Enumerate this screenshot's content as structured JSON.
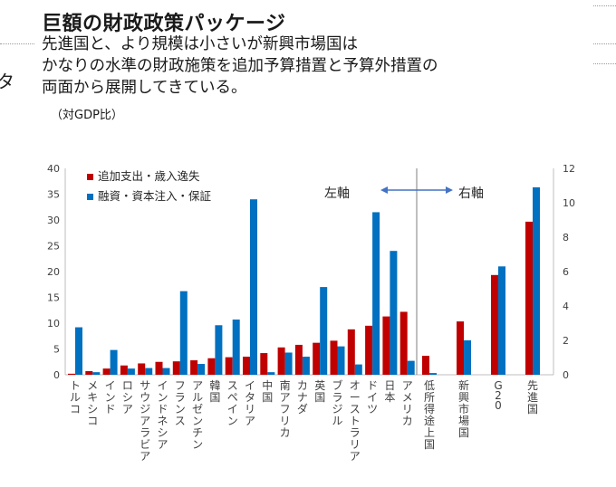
{
  "title": "巨額の財政政策パッケージ",
  "subtitle_lines": [
    "先進国と、より規模は小さいが新興市場国は",
    "かなりの水準の財政施策を追加予算措置と予算外措置の",
    "両面から展開してきている。"
  ],
  "unit_note": "（対GDP比）",
  "edge_fragment": "タ",
  "colors": {
    "series_red": "#c00000",
    "series_blue": "#0070c0",
    "axis": "#bfbfbf",
    "text": "#404040",
    "divider": "#7f7f7f"
  },
  "chart_data": {
    "type": "bar",
    "title": "",
    "axis_labels": {
      "left": "左軸",
      "right": "右軸"
    },
    "left_ylim": [
      0,
      40
    ],
    "left_ticks": [
      0,
      5,
      10,
      15,
      20,
      25,
      30,
      35,
      40
    ],
    "right_ylim": [
      0,
      12
    ],
    "right_ticks": [
      0,
      2,
      4,
      6,
      8,
      10,
      12
    ],
    "series": [
      {
        "name": "追加支出・歳入逸失",
        "color": "#c00000"
      },
      {
        "name": "融資・資本注入・保証",
        "color": "#0070c0"
      }
    ],
    "left_group": {
      "categories": [
        "トルコ",
        "メキシコ",
        "インド",
        "ロシア",
        "サウジアラビア",
        "インドネシア",
        "フランス",
        "アルゼンチン",
        "韓国",
        "スペイン",
        "イタリア",
        "中国",
        "南アフリカ",
        "カナダ",
        "英国",
        "ブラジル",
        "オーストラリア",
        "ドイツ",
        "日本",
        "アメリカ"
      ],
      "values": [
        [
          0.2,
          0.7,
          1.2,
          1.8,
          2.2,
          2.5,
          2.6,
          2.8,
          3.2,
          3.4,
          3.5,
          4.2,
          5.3,
          5.8,
          6.2,
          6.6,
          8.8,
          9.5,
          11.3,
          12.2
        ],
        [
          9.2,
          0.5,
          4.8,
          1.2,
          1.3,
          1.3,
          16.2,
          2.1,
          9.6,
          10.7,
          34.0,
          0.5,
          4.3,
          3.5,
          17.0,
          5.5,
          2.0,
          31.5,
          24.0,
          2.7
        ]
      ]
    },
    "right_group": {
      "categories": [
        "低所得途上国",
        "新興市場国",
        "G20",
        "先進国"
      ],
      "values": [
        [
          1.1,
          3.1,
          5.8,
          8.9
        ],
        [
          0.1,
          2.0,
          6.3,
          10.9
        ]
      ]
    }
  }
}
